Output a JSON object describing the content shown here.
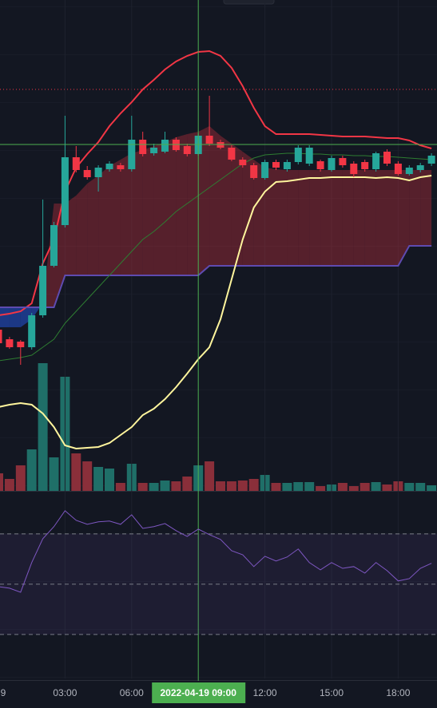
{
  "chart_data": [
    {
      "type": "candlestick",
      "ylim": [
        0,
        620
      ],
      "xticks": [
        {
          "value": 0,
          "label": "9"
        },
        {
          "value": 6,
          "label": "03:00"
        },
        {
          "value": 12,
          "label": "06:00"
        },
        {
          "value": 24,
          "label": "12:00"
        },
        {
          "value": 30,
          "label": "15:00"
        },
        {
          "value": 36,
          "label": "18:00"
        }
      ],
      "crosshair": {
        "x": {
          "value": 18,
          "label": "2022-04-19  09:00"
        },
        "y": 439,
        "color": "#4caf50"
      },
      "up_color": "#26a69a",
      "down_color": "#f23645",
      "open": [
        207,
        195,
        192,
        185,
        225,
        287,
        338,
        423,
        407,
        398,
        408,
        413,
        408,
        445,
        428,
        430,
        445,
        437,
        427,
        450,
        442,
        435,
        420,
        413,
        397,
        417,
        408,
        417,
        415,
        418,
        407,
        422,
        415,
        417,
        408,
        430,
        415,
        402,
        407,
        415
      ],
      "high": [
        210,
        198,
        194,
        228,
        370,
        342,
        475,
        437,
        412,
        413,
        418,
        416,
        475,
        455,
        440,
        455,
        448,
        440,
        453,
        500,
        445,
        438,
        423,
        416,
        420,
        420,
        420,
        438,
        438,
        420,
        425,
        425,
        418,
        420,
        430,
        433,
        418,
        413,
        416,
        428
      ],
      "low": [
        188,
        183,
        163,
        182,
        222,
        285,
        335,
        404,
        395,
        380,
        405,
        405,
        405,
        424,
        425,
        428,
        430,
        424,
        425,
        437,
        433,
        418,
        410,
        395,
        395,
        407,
        405,
        414,
        412,
        405,
        405,
        410,
        398,
        405,
        405,
        412,
        400,
        400,
        404,
        412
      ],
      "close": [
        190,
        185,
        185,
        225,
        287,
        338,
        423,
        407,
        398,
        410,
        415,
        408,
        445,
        427,
        435,
        445,
        432,
        427,
        450,
        440,
        435,
        420,
        413,
        397,
        417,
        410,
        417,
        435,
        435,
        408,
        422,
        413,
        402,
        408,
        428,
        415,
        402,
        410,
        413,
        425
      ],
      "cloud": {
        "up_color": "#f23645",
        "down_color": "#2962ff",
        "top": [
          210,
          210,
          210,
          220,
          240,
          365,
          365,
          375,
          390,
          400,
          412,
          420,
          428,
          432,
          437,
          442,
          448,
          452,
          455,
          462,
          450,
          440,
          430,
          420,
          410,
          408,
          407,
          407,
          407,
          407,
          407,
          407,
          407,
          407,
          407,
          407,
          407,
          407,
          407,
          407
        ]
      },
      "series": [
        {
          "color": "#f23645",
          "values": [
            225,
            227,
            230,
            240,
            290,
            320,
            380,
            410,
            427,
            442,
            462,
            478,
            492,
            508,
            520,
            533,
            543,
            550,
            555,
            556,
            550,
            535,
            512,
            485,
            462,
            452,
            452,
            452,
            452,
            451,
            450,
            449,
            449,
            449,
            448,
            447,
            447,
            444,
            438,
            434
          ]
        },
        {
          "color": "#5e4bb0",
          "values": [
            235,
            235,
            235,
            235,
            235,
            235,
            275,
            275,
            275,
            275,
            275,
            275,
            275,
            275,
            275,
            275,
            275,
            275,
            275,
            287,
            287,
            287,
            287,
            287,
            287,
            287,
            287,
            287,
            287,
            287,
            287,
            287,
            287,
            287,
            287,
            287,
            287,
            312,
            312,
            312
          ]
        },
        {
          "color": "#fff59d",
          "values": [
            110,
            113,
            115,
            113,
            102,
            85,
            62,
            58,
            59,
            60,
            65,
            75,
            85,
            100,
            108,
            120,
            135,
            152,
            170,
            185,
            220,
            270,
            320,
            360,
            380,
            392,
            393,
            395,
            397,
            397,
            398,
            398,
            398,
            398,
            397,
            398,
            397,
            394,
            398,
            400
          ]
        },
        {
          "color": "#2e7d32",
          "values": [
            168,
            170,
            172,
            175,
            185,
            195,
            215,
            230,
            245,
            260,
            275,
            290,
            305,
            320,
            330,
            342,
            355,
            365,
            375,
            385,
            395,
            405,
            415,
            422,
            426,
            427,
            428,
            428,
            427,
            427,
            426,
            426,
            425,
            425,
            424,
            424,
            423,
            422,
            421,
            420
          ]
        }
      ]
    },
    {
      "type": "bar",
      "ylim": [
        0,
        615
      ],
      "up_color": "#1f6f68",
      "down_color": "#8a2f3a",
      "values": [
        22,
        15,
        32,
        52,
        160,
        42,
        143,
        47,
        37,
        30,
        28,
        10,
        34,
        10,
        10,
        13,
        12,
        18,
        32,
        37,
        12,
        12,
        13,
        15,
        20,
        10,
        10,
        11,
        11,
        6,
        8,
        10,
        6,
        10,
        11,
        8,
        12,
        10,
        10,
        7
      ]
    },
    {
      "type": "line",
      "ylim": [
        12.5,
        87.1
      ],
      "yticks": [
        30,
        50,
        70
      ],
      "color": "#7e57c2",
      "values": [
        49,
        48.4,
        46.8,
        58.6,
        68.1,
        72.9,
        79.2,
        75.4,
        73.8,
        74.8,
        75.1,
        73.8,
        77.6,
        72.2,
        72.9,
        74.1,
        71.3,
        69,
        71.9,
        69.7,
        67.8,
        63.3,
        61.7,
        57,
        61.1,
        59.2,
        60.8,
        64,
        58.6,
        55.7,
        58.6,
        56.3,
        57,
        54.4,
        58.6,
        55.4,
        51.3,
        52.2,
        56.3,
        58.3
      ]
    }
  ]
}
